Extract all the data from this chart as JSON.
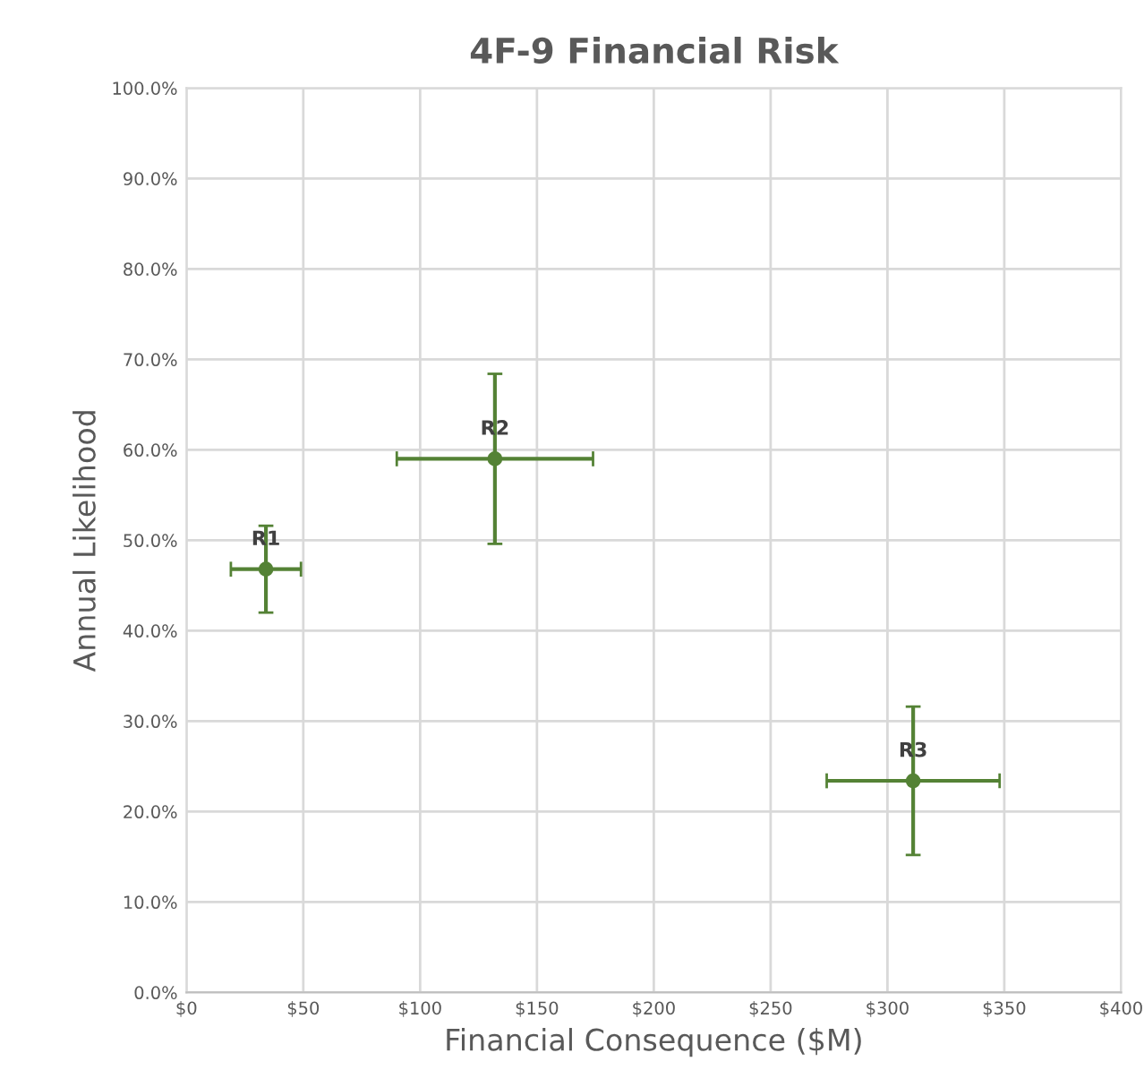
{
  "chart_data": {
    "type": "scatter",
    "title": "4F-9 Financial Risk",
    "xlabel": "Financial Consequence ($M)",
    "ylabel": "Annual Likelihood",
    "x": [
      34,
      132,
      311
    ],
    "values": [
      46.8,
      59,
      23.4
    ],
    "color": "#548235",
    "marker": "circle",
    "errors": [
      4.8,
      9.4,
      8.2
    ],
    "xerrors": [
      15,
      42,
      37
    ],
    "annotations": [
      {
        "text": "R1",
        "x": 34,
        "y": 46.8
      },
      {
        "text": "R2",
        "x": 132,
        "y": 59
      },
      {
        "text": "R3",
        "x": 311,
        "y": 23.4
      }
    ],
    "xlim": [
      0,
      400
    ],
    "ylim": [
      0,
      100
    ],
    "xticks": [
      {
        "value": 0,
        "label": "$0"
      },
      {
        "value": 50,
        "label": "$50"
      },
      {
        "value": 100,
        "label": "$100"
      },
      {
        "value": 150,
        "label": "$150"
      },
      {
        "value": 200,
        "label": "$200"
      },
      {
        "value": 250,
        "label": "$250"
      },
      {
        "value": 300,
        "label": "$300"
      },
      {
        "value": 350,
        "label": "$350"
      },
      {
        "value": 400,
        "label": "$400"
      }
    ],
    "yticks": [
      {
        "value": 0,
        "label": "0.0%"
      },
      {
        "value": 10,
        "label": "10.0%"
      },
      {
        "value": 20,
        "label": "20.0%"
      },
      {
        "value": 30,
        "label": "30.0%"
      },
      {
        "value": 40,
        "label": "40.0%"
      },
      {
        "value": 50,
        "label": "50.0%"
      },
      {
        "value": 60,
        "label": "60.0%"
      },
      {
        "value": 70,
        "label": "70.0%"
      },
      {
        "value": 80,
        "label": "80.0%"
      },
      {
        "value": 90,
        "label": "90.0%"
      },
      {
        "value": 100,
        "label": "100.0%"
      }
    ],
    "grid": true
  }
}
